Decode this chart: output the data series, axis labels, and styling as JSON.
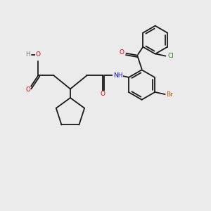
{
  "background_color": "#ebebeb",
  "bond_color": "#1a1a1a",
  "figsize": [
    3.0,
    3.0
  ],
  "dpi": 100,
  "atoms": {
    "H": "#7a7a7a",
    "O": "#e00000",
    "N": "#1010e0",
    "Cl": "#228822",
    "Br": "#bb5500",
    "C": "#1a1a1a"
  },
  "lw": 1.3,
  "fs": 6.5
}
